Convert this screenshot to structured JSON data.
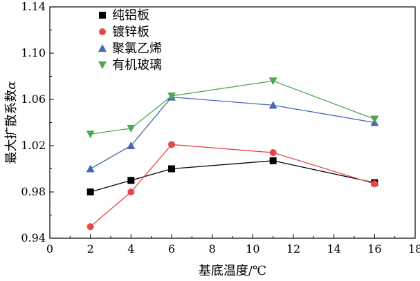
{
  "chart_data": {
    "type": "line",
    "xlabel": "基底温度/℃",
    "ylabel": "最大扩散系数",
    "ylabel_symbol": "α",
    "xlim": [
      0,
      18
    ],
    "ylim": [
      0.94,
      1.14
    ],
    "xticks": [
      0,
      2,
      4,
      6,
      8,
      10,
      12,
      14,
      16,
      18
    ],
    "yticks": [
      0.94,
      0.98,
      1.02,
      1.06,
      1.1,
      1.14
    ],
    "ytick_labels": [
      "0.94",
      "0.98",
      "1.02",
      "1.06",
      "1.10",
      "1.14"
    ],
    "legend_position": "top-left",
    "grid": false,
    "x": [
      2,
      4,
      6,
      11,
      16
    ],
    "series": [
      {
        "name": "纯铝板",
        "marker": "square",
        "color": "#000000",
        "values": [
          0.98,
          0.99,
          1.0,
          1.007,
          0.988
        ]
      },
      {
        "name": "镀锌板",
        "marker": "circle",
        "color": "#e8474a",
        "values": [
          0.95,
          0.98,
          1.021,
          1.014,
          0.987
        ]
      },
      {
        "name": "聚氯乙烯",
        "marker": "triangle-up",
        "color": "#4569b3",
        "values": [
          1.0,
          1.02,
          1.062,
          1.055,
          1.04
        ]
      },
      {
        "name": "有机玻璃",
        "marker": "triangle-down",
        "color": "#4fa752",
        "values": [
          1.03,
          1.035,
          1.063,
          1.076,
          1.043
        ]
      }
    ]
  }
}
